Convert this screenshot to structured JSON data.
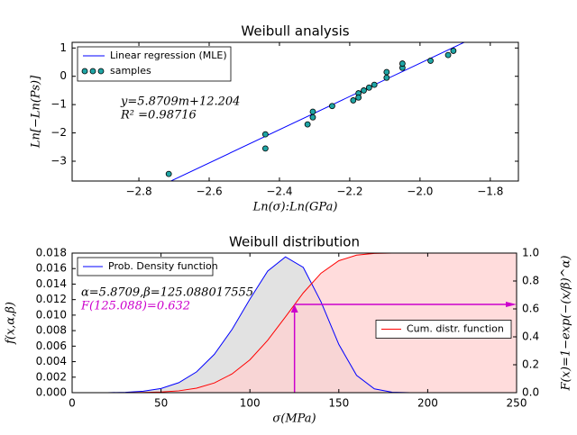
{
  "chart_data": [
    {
      "type": "scatter",
      "title": "Weibull analysis",
      "x_label": "Ln(σ):Ln(GPa)",
      "y_label": "Ln[−Ln(Ps)]",
      "xlim": [
        -2.99,
        -1.72
      ],
      "ylim": [
        -3.7,
        1.2
      ],
      "xticks": [
        {
          "value": -2.8,
          "label": "−2.8"
        },
        {
          "value": -2.6,
          "label": "−2.6"
        },
        {
          "value": -2.4,
          "label": "−2.4"
        },
        {
          "value": -2.2,
          "label": "−2.2"
        },
        {
          "value": -2.0,
          "label": "−2.0"
        },
        {
          "value": -1.8,
          "label": "−1.8"
        }
      ],
      "yticks": [
        {
          "value": -3,
          "label": "−3"
        },
        {
          "value": -2,
          "label": "−2"
        },
        {
          "value": -1,
          "label": "−1"
        },
        0,
        1
      ],
      "legend": "upper left",
      "annotations": [
        "y=5.8709m+12.204",
        "R² =0.98716"
      ],
      "series": [
        {
          "name": "Linear regression (MLE)",
          "style": "line",
          "color": "#0000ff",
          "x": [
            -2.72,
            -1.875
          ],
          "values": [
            -3.765,
            1.196
          ]
        },
        {
          "name": "samples",
          "style": "marker",
          "color": "#1fa5a5",
          "x": [
            -2.715,
            -2.44,
            -2.44,
            -2.32,
            -2.305,
            -2.305,
            -2.25,
            -2.19,
            -2.175,
            -2.175,
            -2.16,
            -2.145,
            -2.13,
            -2.095,
            -2.095,
            -2.05,
            -2.05,
            -1.97,
            -1.92,
            -1.905
          ],
          "values": [
            -3.45,
            -2.05,
            -2.55,
            -1.7,
            -1.25,
            -1.45,
            -1.05,
            -0.85,
            -0.6,
            -0.75,
            -0.5,
            -0.4,
            -0.3,
            -0.05,
            0.15,
            0.3,
            0.45,
            0.55,
            0.75,
            0.9
          ]
        }
      ]
    },
    {
      "type": "line",
      "title": "Weibull distribution",
      "x_label": "σ(MPa)",
      "y_label": "f(x,α,β)",
      "y2_label": "F(x)=1−exp(−(x/β)^α)",
      "xlim": [
        0,
        250
      ],
      "ylim": [
        0,
        0.018
      ],
      "y2lim": [
        0,
        1.0
      ],
      "xticks": [
        0,
        50,
        100,
        150,
        200,
        250
      ],
      "yticks": [
        {
          "value": 0,
          "label": "0.000"
        },
        0.002,
        0.004,
        0.006,
        0.008,
        {
          "value": 0.01,
          "label": "0.010"
        },
        0.012,
        0.014,
        0.016,
        0.018
      ],
      "y2ticks": [
        {
          "value": 0,
          "label": "0.0"
        },
        0.2,
        0.4,
        0.6,
        0.8,
        {
          "value": 1,
          "label": "1.0"
        }
      ],
      "annotations": [
        "α=5.8709,β=125.088017555",
        "F(125.088)=0.632"
      ],
      "reference_point": {
        "x": 125.088,
        "y": 0.632,
        "color": "#cc00cc"
      },
      "series": [
        {
          "name": "Prob. Density function",
          "color": "#0000ff",
          "fill": "#d8d8d8",
          "legend": "upper left",
          "x": [
            0,
            10,
            20,
            30,
            40,
            50,
            60,
            70,
            80,
            90,
            100,
            110,
            120,
            130,
            140,
            150,
            160,
            170,
            180,
            190,
            200,
            210,
            220,
            230,
            240,
            250
          ],
          "values": [
            0,
            2e-07,
            6.2e-06,
            4.48e-05,
            0.000182,
            0.000537,
            0.001293,
            0.002685,
            0.004947,
            0.008171,
            0.012059,
            0.015681,
            0.017511,
            0.016161,
            0.011707,
            0.006226,
            0.002238,
            0.00049,
            5.8e-05,
            3.2e-06,
            0,
            0,
            0,
            0,
            0,
            0
          ]
        },
        {
          "name": "Cum. distr. function",
          "color": "#ff0000",
          "fill": "#ffd0d0",
          "axis": "y2",
          "legend": "center right",
          "x": [
            0,
            10,
            20,
            30,
            40,
            50,
            60,
            70,
            80,
            90,
            100,
            110,
            120,
            130,
            140,
            150,
            160,
            170,
            180,
            190,
            200,
            210,
            220,
            230,
            240,
            250
          ],
          "values": [
            0,
            0,
            2.1e-05,
            0.0002,
            0.0012,
            0.0046,
            0.0133,
            0.0326,
            0.0699,
            0.1348,
            0.2356,
            0.3751,
            0.5433,
            0.7146,
            0.8559,
            0.9452,
            0.9856,
            0.9977,
            0.9998,
            1,
            1,
            1,
            1,
            1,
            1,
            1
          ]
        }
      ]
    }
  ]
}
